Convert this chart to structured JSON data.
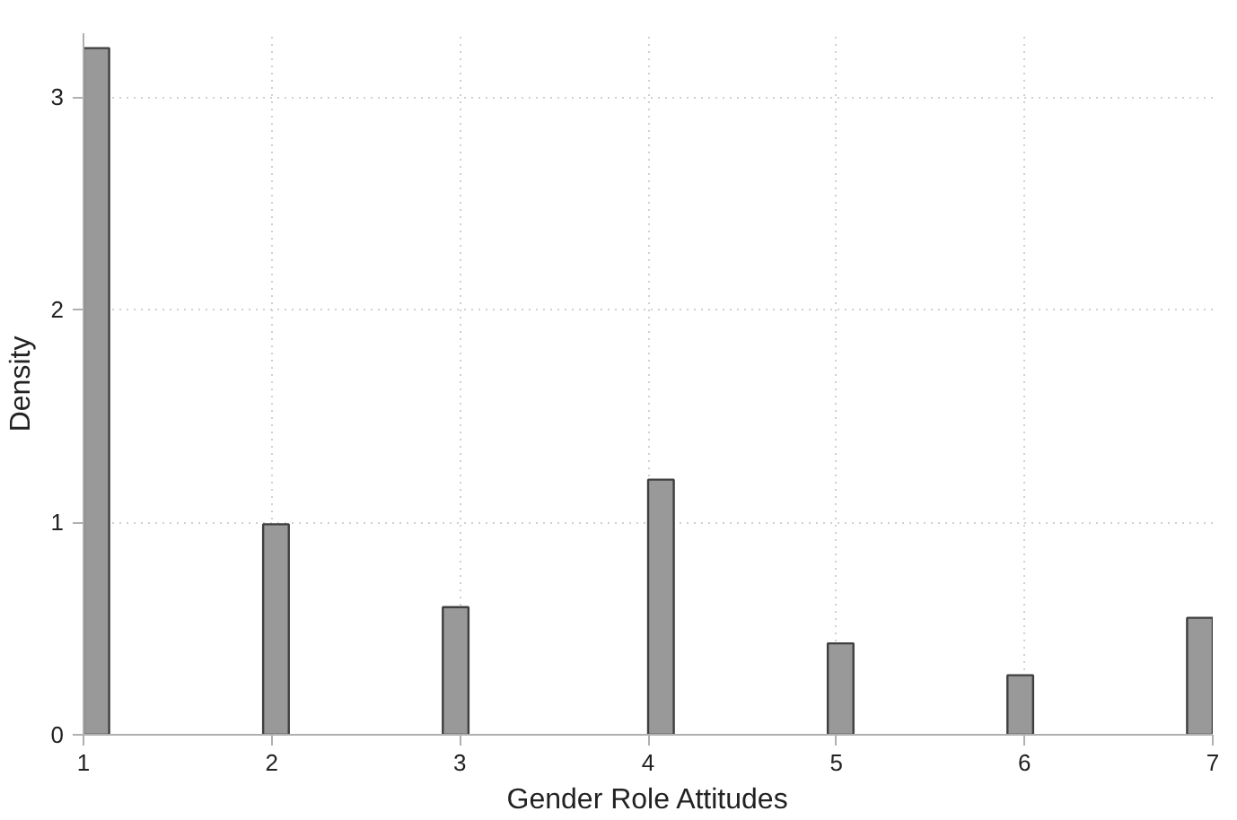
{
  "chart_data": {
    "type": "histogram",
    "xlabel": "Gender Role Attitudes",
    "ylabel": "Density",
    "bins": [
      1,
      1.1364,
      1.2727,
      1.4091,
      1.5455,
      1.6818,
      1.8182,
      1.9545,
      2.0909,
      2.2273,
      2.3636,
      2.5,
      2.6364,
      2.7727,
      2.9091,
      3.0455,
      3.1818,
      3.3182,
      3.4545,
      3.5909,
      3.7273,
      3.8636,
      4,
      4.1364,
      4.2727,
      4.4091,
      4.5455,
      4.6818,
      4.8182,
      4.9545,
      5.0909,
      5.2273,
      5.3636,
      5.5,
      5.6364,
      5.7727,
      5.9091,
      6.0455,
      6.1818,
      6.3182,
      6.4545,
      6.5909,
      6.7273,
      6.8636,
      7
    ],
    "values": [
      3.23,
      0,
      0,
      0,
      0,
      0,
      0,
      0.99,
      0,
      0,
      0,
      0,
      0,
      0,
      0.6,
      0,
      0,
      0,
      0,
      0,
      0,
      0,
      1.2,
      0,
      0,
      0,
      0,
      0,
      0,
      0.43,
      0,
      0,
      0,
      0,
      0,
      0,
      0.28,
      0,
      0,
      0,
      0,
      0,
      0,
      0.55
    ],
    "color": "#999999",
    "xlim": [
      1,
      7
    ],
    "ylim": [
      0,
      3.3
    ],
    "xticks": [
      1,
      2,
      3,
      4,
      5,
      6,
      7
    ],
    "yticks": [
      0,
      1,
      2,
      3
    ],
    "grid": true
  }
}
